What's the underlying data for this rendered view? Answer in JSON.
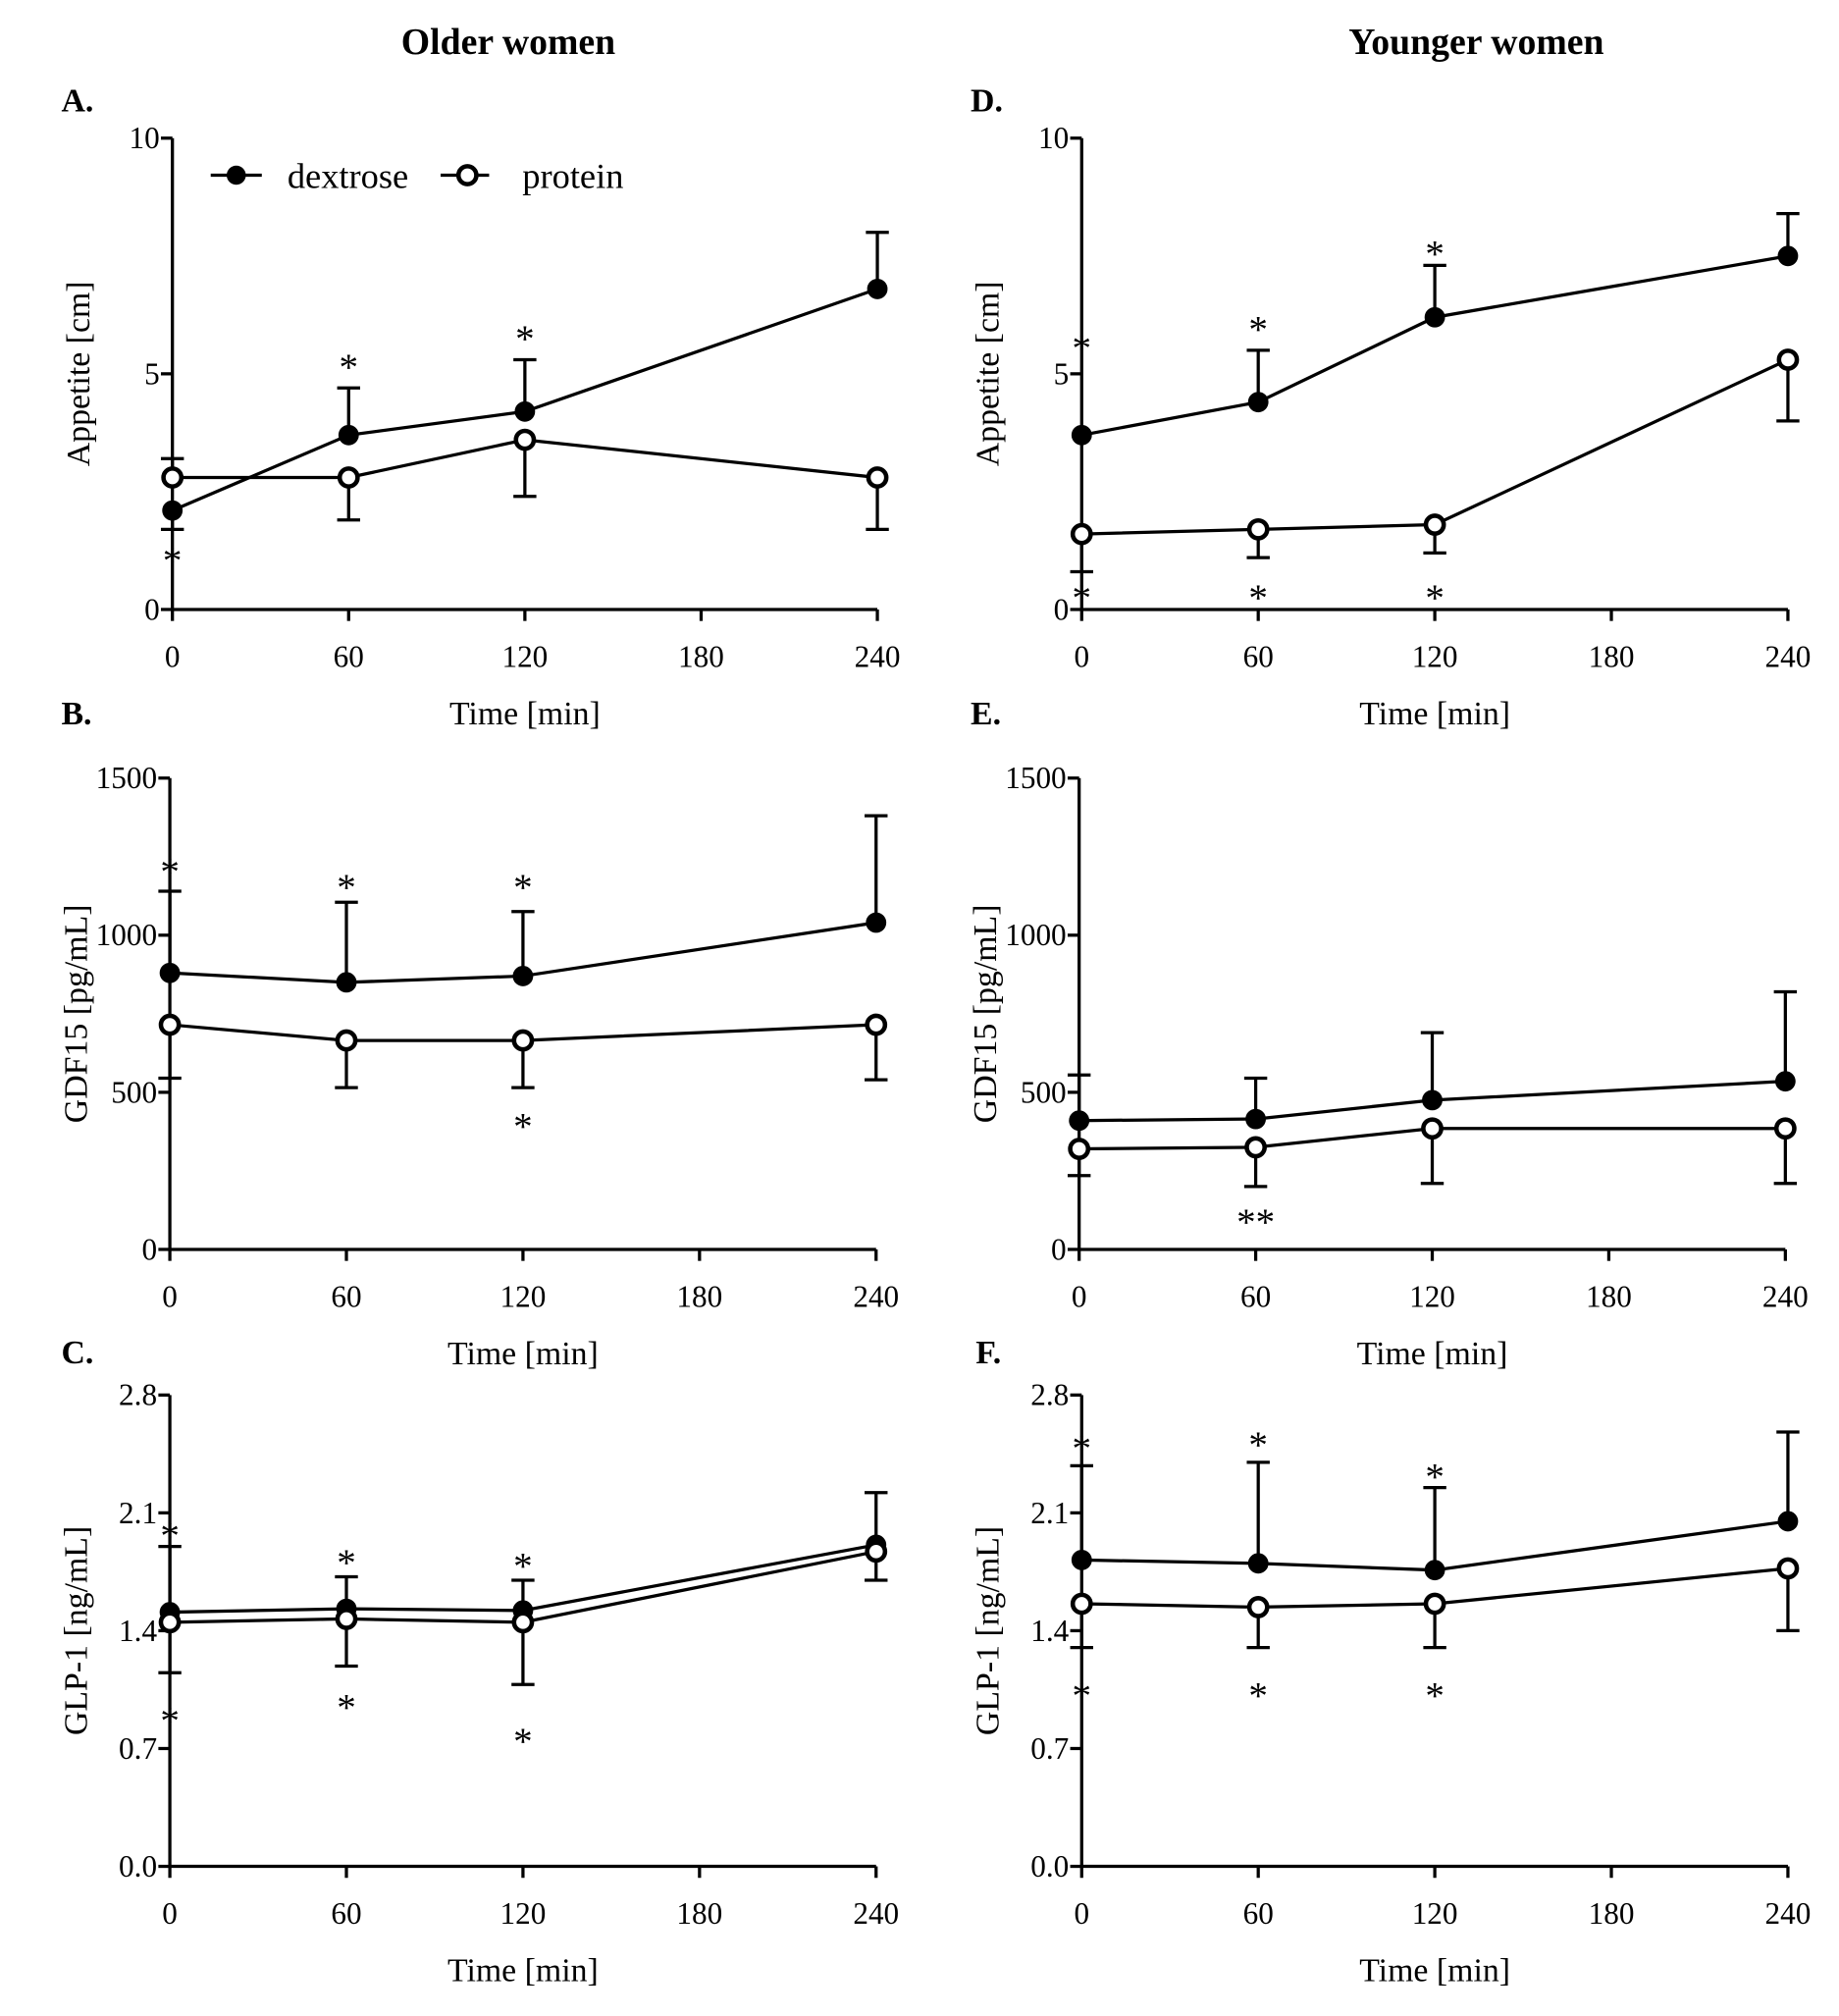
{
  "column_titles": [
    "Older women",
    "Younger women"
  ],
  "legend": [
    {
      "name": "dextrose",
      "marker": "filled-circle"
    },
    {
      "name": "protein",
      "marker": "open-circle"
    }
  ],
  "colors": {
    "line": "#000000",
    "background": "#ffffff"
  },
  "chart_data": [
    {
      "panel": "A.",
      "type": "line",
      "group": "Older women",
      "ylabel": "Appetite [cm]",
      "xlabel": "Time [min]",
      "xlim": [
        0,
        240
      ],
      "xticks": [
        0,
        60,
        120,
        180,
        240
      ],
      "ylim": [
        0,
        10
      ],
      "yticks": [
        "0",
        "5",
        "10"
      ],
      "ytick_values": [
        0,
        5,
        10
      ],
      "legend": true,
      "x": [
        0,
        60,
        120,
        240
      ],
      "series": [
        {
          "name": "dextrose",
          "values": [
            2.1,
            3.7,
            4.2,
            6.8
          ],
          "error_end": [
            1.7,
            4.7,
            5.3,
            8.0
          ]
        },
        {
          "name": "protein",
          "values": [
            2.8,
            2.8,
            3.6,
            2.8
          ],
          "error_end": [
            3.2,
            1.9,
            2.4,
            1.7
          ]
        }
      ],
      "annotations": [
        {
          "x": 0,
          "y": 1.1,
          "text": "*"
        },
        {
          "x": 60,
          "y": 5.2,
          "text": "*"
        },
        {
          "x": 120,
          "y": 5.8,
          "text": "*"
        }
      ]
    },
    {
      "panel": "B.",
      "type": "line",
      "group": "Older women",
      "ylabel": "GDF15 [pg/mL]",
      "xlabel": "Time [min]",
      "xlim": [
        0,
        240
      ],
      "xticks": [
        0,
        60,
        120,
        180,
        240
      ],
      "ylim": [
        0,
        1500
      ],
      "yticks": [
        "0",
        "500",
        "1000",
        "1500"
      ],
      "ytick_values": [
        0,
        500,
        1000,
        1500
      ],
      "x": [
        0,
        60,
        120,
        240
      ],
      "series": [
        {
          "name": "dextrose",
          "values": [
            880,
            850,
            870,
            1040
          ],
          "error_end": [
            1140,
            1105,
            1075,
            1380
          ]
        },
        {
          "name": "protein",
          "values": [
            715,
            665,
            665,
            715
          ],
          "error_end": [
            545,
            515,
            515,
            540
          ]
        }
      ],
      "annotations": [
        {
          "x": 0,
          "y": 1210,
          "text": "*"
        },
        {
          "x": 60,
          "y": 1160,
          "text": "*"
        },
        {
          "x": 120,
          "y": 1160,
          "text": "*"
        },
        {
          "x": 120,
          "y": 400,
          "text": "*"
        }
      ]
    },
    {
      "panel": "C.",
      "type": "line",
      "group": "Older women",
      "ylabel": "GLP-1 [ng/mL]",
      "xlabel": "Time [min]",
      "xlim": [
        0,
        240
      ],
      "xticks": [
        0,
        60,
        120,
        180,
        240
      ],
      "ylim": [
        0,
        2.8
      ],
      "yticks": [
        "0.0",
        "0.7",
        "1.4",
        "2.1",
        "2.8"
      ],
      "ytick_values": [
        0,
        0.7,
        1.4,
        2.1,
        2.8
      ],
      "x": [
        0,
        60,
        120,
        240
      ],
      "series": [
        {
          "name": "dextrose",
          "values": [
            1.51,
            1.53,
            1.52,
            1.91
          ],
          "error_end": [
            1.9,
            1.72,
            1.7,
            2.22
          ]
        },
        {
          "name": "protein",
          "values": [
            1.45,
            1.47,
            1.45,
            1.87
          ],
          "error_end": [
            1.15,
            1.19,
            1.08,
            1.7
          ]
        }
      ],
      "annotations": [
        {
          "x": 0,
          "y": 1.98,
          "text": "*"
        },
        {
          "x": 60,
          "y": 1.82,
          "text": "*"
        },
        {
          "x": 120,
          "y": 1.8,
          "text": "*"
        },
        {
          "x": 0,
          "y": 0.88,
          "text": "*"
        },
        {
          "x": 60,
          "y": 0.96,
          "text": "*"
        },
        {
          "x": 120,
          "y": 0.76,
          "text": "*"
        }
      ]
    },
    {
      "panel": "D.",
      "type": "line",
      "group": "Younger women",
      "ylabel": "Appetite [cm]",
      "xlabel": "Time [min]",
      "xlim": [
        0,
        240
      ],
      "xticks": [
        0,
        60,
        120,
        180,
        240
      ],
      "ylim": [
        0,
        10
      ],
      "yticks": [
        "0",
        "5",
        "10"
      ],
      "ytick_values": [
        0,
        5,
        10
      ],
      "x": [
        0,
        60,
        120,
        240
      ],
      "series": [
        {
          "name": "dextrose",
          "values": [
            3.7,
            4.4,
            6.2,
            7.5
          ],
          "error_end": [
            3.7,
            5.5,
            7.3,
            8.4
          ]
        },
        {
          "name": "protein",
          "values": [
            1.6,
            1.7,
            1.8,
            5.3
          ],
          "error_end": [
            0.8,
            1.1,
            1.2,
            4.0
          ]
        }
      ],
      "annotations": [
        {
          "x": 0,
          "y": 5.6,
          "text": "*"
        },
        {
          "x": 60,
          "y": 6.0,
          "text": "*"
        },
        {
          "x": 120,
          "y": 7.6,
          "text": "*"
        },
        {
          "x": 0,
          "y": 0.3,
          "text": "*"
        },
        {
          "x": 60,
          "y": 0.3,
          "text": "*"
        },
        {
          "x": 120,
          "y": 0.3,
          "text": "*"
        }
      ]
    },
    {
      "panel": "E.",
      "type": "line",
      "group": "Younger women",
      "ylabel": "GDF15 [pg/mL]",
      "xlabel": "Time [min]",
      "xlim": [
        0,
        240
      ],
      "xticks": [
        0,
        60,
        120,
        180,
        240
      ],
      "ylim": [
        0,
        1500
      ],
      "yticks": [
        "0",
        "500",
        "1000",
        "1500"
      ],
      "ytick_values": [
        0,
        500,
        1000,
        1500
      ],
      "x": [
        0,
        60,
        120,
        240
      ],
      "series": [
        {
          "name": "dextrose",
          "values": [
            410,
            415,
            475,
            535
          ],
          "error_end": [
            555,
            545,
            690,
            820
          ]
        },
        {
          "name": "protein",
          "values": [
            320,
            325,
            385,
            385
          ],
          "error_end": [
            235,
            200,
            210,
            210
          ]
        }
      ],
      "annotations": [
        {
          "x": 60,
          "y": 95,
          "text": "**"
        }
      ]
    },
    {
      "panel": "F.",
      "type": "line",
      "group": "Younger women",
      "ylabel": "GLP-1 [ng/mL]",
      "xlabel": "Time [min]",
      "xlim": [
        0,
        240
      ],
      "xticks": [
        0,
        60,
        120,
        180,
        240
      ],
      "ylim": [
        0,
        2.8
      ],
      "yticks": [
        "0.0",
        "0.7",
        "1.4",
        "2.1",
        "2.8"
      ],
      "ytick_values": [
        0,
        0.7,
        1.4,
        2.1,
        2.8
      ],
      "x": [
        0,
        60,
        120,
        240
      ],
      "series": [
        {
          "name": "dextrose",
          "values": [
            1.82,
            1.8,
            1.76,
            2.05
          ],
          "error_end": [
            2.38,
            2.4,
            2.25,
            2.58
          ]
        },
        {
          "name": "protein",
          "values": [
            1.56,
            1.54,
            1.56,
            1.77
          ],
          "error_end": [
            1.3,
            1.3,
            1.3,
            1.4
          ]
        }
      ],
      "annotations": [
        {
          "x": 0,
          "y": 2.5,
          "text": "*"
        },
        {
          "x": 60,
          "y": 2.52,
          "text": "*"
        },
        {
          "x": 120,
          "y": 2.33,
          "text": "*"
        },
        {
          "x": 0,
          "y": 1.03,
          "text": "*"
        },
        {
          "x": 60,
          "y": 1.03,
          "text": "*"
        },
        {
          "x": 120,
          "y": 1.03,
          "text": "*"
        }
      ]
    }
  ]
}
